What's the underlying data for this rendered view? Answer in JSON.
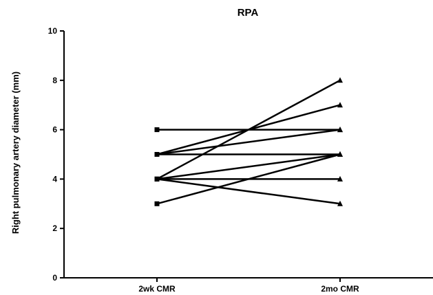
{
  "chart_data": {
    "type": "line",
    "title": "RPA",
    "ylabel": "Right pulmonary artery diameter (mm)",
    "xlabel": "",
    "categories": [
      "2wk CMR",
      "2mo CMR"
    ],
    "ylim": [
      0,
      10
    ],
    "yticks": [
      0,
      2,
      4,
      6,
      8,
      10
    ],
    "grid": false,
    "legend": "none",
    "markers": {
      "start": "square",
      "end": "triangle"
    },
    "series": [
      {
        "values": [
          6,
          6
        ]
      },
      {
        "values": [
          5,
          5
        ]
      },
      {
        "values": [
          5,
          6
        ]
      },
      {
        "values": [
          5,
          7
        ]
      },
      {
        "values": [
          4,
          8
        ]
      },
      {
        "values": [
          4,
          5
        ]
      },
      {
        "values": [
          4,
          4
        ]
      },
      {
        "values": [
          4,
          3
        ]
      },
      {
        "values": [
          3,
          5
        ]
      }
    ]
  }
}
